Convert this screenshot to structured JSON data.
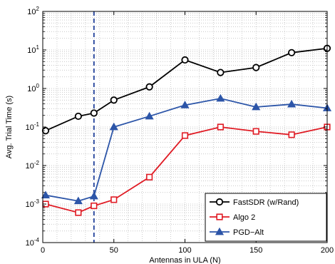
{
  "chart_data": {
    "type": "line",
    "title": "",
    "xlabel": "Antennas in ULA (N)",
    "ylabel": "Avg. Trial Time (s)",
    "xlim": [
      0,
      200
    ],
    "ylim": [
      0.0001,
      100
    ],
    "yscale": "log",
    "grid": true,
    "legend_position": "bottom-right",
    "x_ticks": [
      "0",
      "50",
      "100",
      "150",
      "200"
    ],
    "y_tick_base": "10",
    "y_tick_exponents": [
      "-4",
      "-3",
      "-2",
      "-1",
      "0",
      "1",
      "2"
    ],
    "vertical_line": {
      "x": 36,
      "style": "dashed",
      "color": "#1f3f99"
    },
    "series": [
      {
        "name": "FastSDR (w/Rand)",
        "color": "#000000",
        "marker": "circle",
        "x": [
          2,
          25,
          36,
          50,
          75,
          100,
          125,
          150,
          175,
          200
        ],
        "y": [
          0.08,
          0.19,
          0.23,
          0.5,
          1.1,
          5.5,
          2.6,
          3.5,
          8.5,
          11
        ]
      },
      {
        "name": "Algo 2",
        "color": "#e01b24",
        "marker": "square",
        "x": [
          2,
          25,
          36,
          50,
          75,
          100,
          125,
          150,
          175,
          200
        ],
        "y": [
          0.001,
          0.0006,
          0.0009,
          0.0013,
          0.005,
          0.06,
          0.1,
          0.077,
          0.063,
          0.1
        ]
      },
      {
        "name": "PGD−Alt",
        "color": "#2c55a8",
        "marker": "triangle",
        "x": [
          2,
          25,
          36,
          50,
          75,
          100,
          125,
          150,
          175,
          200
        ],
        "y": [
          0.0017,
          0.0012,
          0.0016,
          0.1,
          0.19,
          0.37,
          0.55,
          0.33,
          0.39,
          0.31
        ]
      }
    ]
  }
}
